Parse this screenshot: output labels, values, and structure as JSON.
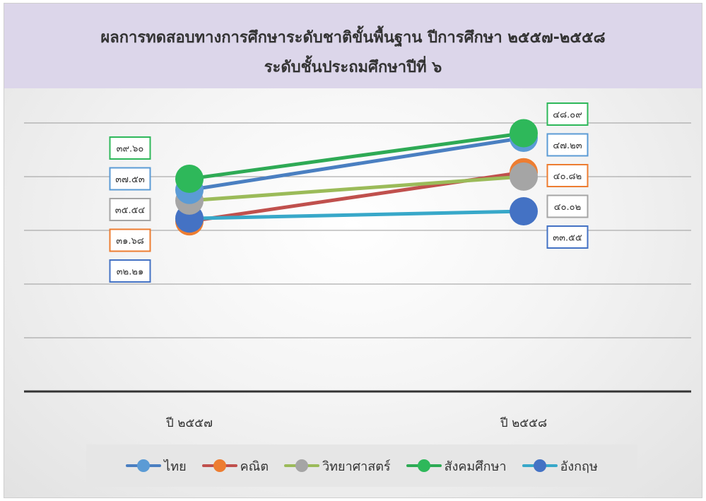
{
  "title": "ผลการทดสอบทางการศึกษาระดับชาติขั้นพื้นฐาน ปีการศึกษา ๒๕๕๗-๒๕๕๘",
  "subtitle": "ระดับชั้นประถมศึกษาปีที่ ๖",
  "colors": {
    "title_band": "#dcd6ea",
    "axis": "#333333",
    "grid": "#9a9a9a"
  },
  "chart_data": {
    "type": "line",
    "categories": [
      "ปี ๒๕๕๗",
      "ปี ๒๕๕๘"
    ],
    "ylim": [
      0,
      50
    ],
    "grid": true,
    "legend_position": "bottom",
    "series": [
      {
        "name": "ไทย",
        "values": [
          37.53,
          47.23
        ],
        "labels": [
          "๓๗.๕๓",
          "๔๗.๒๓"
        ],
        "color": "#4a7fc1",
        "marker": "#5b9bd5"
      },
      {
        "name": "คณิต",
        "values": [
          31.68,
          40.82
        ],
        "labels": [
          "๓๑.๖๘",
          "๔๐.๘๒"
        ],
        "color": "#c0504d",
        "marker": "#ed7d31"
      },
      {
        "name": "วิทยาศาสตร์",
        "values": [
          35.54,
          40.02
        ],
        "labels": [
          "๓๕.๕๔",
          "๔๐.๐๒"
        ],
        "color": "#9bbb59",
        "marker": "#a5a5a5"
      },
      {
        "name": "สังคมศึกษา",
        "values": [
          39.6,
          48.09
        ],
        "labels": [
          "๓๙.๖๐",
          "๔๘.๐๙"
        ],
        "color": "#2eaa55",
        "marker": "#2eb85a"
      },
      {
        "name": "อังกฤษ",
        "values": [
          32.21,
          33.55
        ],
        "labels": [
          "๓๒.๒๑",
          "๓๓.๕๕"
        ],
        "color": "#38a8c9",
        "marker": "#4472c4"
      }
    ]
  }
}
